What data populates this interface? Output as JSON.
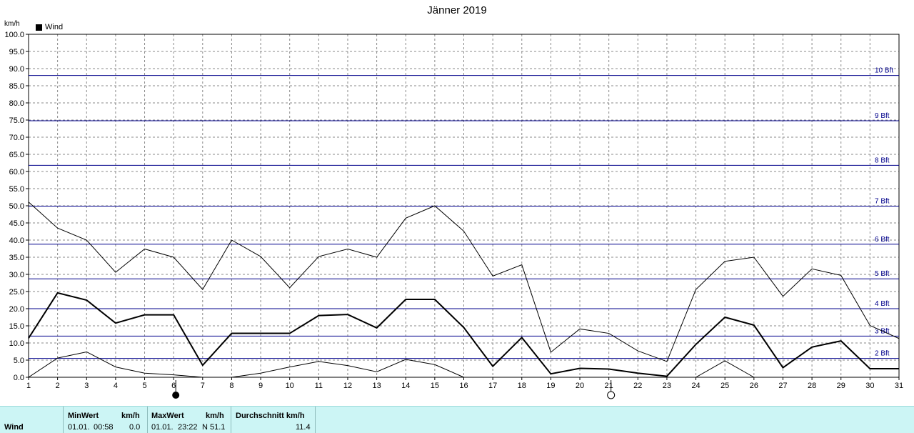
{
  "chart_data": {
    "type": "line",
    "title": "Jänner 2019",
    "ylabel": "km/h",
    "legend": [
      "Wind"
    ],
    "x": [
      1,
      2,
      3,
      4,
      5,
      6,
      7,
      8,
      9,
      10,
      11,
      12,
      13,
      14,
      15,
      16,
      17,
      18,
      19,
      20,
      21,
      22,
      23,
      24,
      25,
      26,
      27,
      28,
      29,
      30,
      31
    ],
    "xticks": [
      "1",
      "2",
      "3",
      "4",
      "5",
      "6",
      "7",
      "8",
      "9",
      "10",
      "11",
      "12",
      "13",
      "14",
      "15",
      "16",
      "17",
      "18",
      "19",
      "20",
      "21",
      "22",
      "23",
      "24",
      "25",
      "26",
      "27",
      "28",
      "29",
      "30",
      "31"
    ],
    "ylim": [
      0,
      100
    ],
    "yticks": [
      "0.0",
      "5.0",
      "10.0",
      "15.0",
      "20.0",
      "25.0",
      "30.0",
      "35.0",
      "40.0",
      "45.0",
      "50.0",
      "55.0",
      "60.0",
      "65.0",
      "70.0",
      "75.0",
      "80.0",
      "85.0",
      "90.0",
      "95.0",
      "100.0"
    ],
    "grid": true,
    "series": [
      {
        "name": "Wind",
        "role": "mean",
        "color": "#000000",
        "values": [
          11.4,
          24.6,
          22.5,
          15.8,
          18.2,
          18.2,
          3.5,
          12.8,
          12.8,
          12.8,
          18.0,
          18.3,
          14.4,
          22.7,
          22.7,
          14.5,
          3.2,
          11.6,
          1.0,
          2.6,
          2.4,
          1.2,
          0.3,
          9.6,
          17.5,
          15.2,
          2.8,
          8.8,
          10.6,
          2.5,
          2.5
        ]
      },
      {
        "role": "max",
        "color": "#000000",
        "values": [
          51.1,
          43.5,
          40.0,
          30.6,
          37.4,
          35.0,
          25.6,
          40.0,
          35.2,
          26.1,
          35.2,
          37.4,
          35.0,
          46.4,
          50.0,
          42.6,
          29.5,
          32.8,
          7.3,
          14.1,
          12.8,
          7.7,
          4.6,
          25.6,
          33.8,
          35.0,
          23.6,
          31.6,
          29.7,
          15.1,
          11.3
        ]
      },
      {
        "role": "min",
        "color": "#000000",
        "values": [
          0.0,
          5.6,
          7.4,
          3.0,
          1.2,
          0.7,
          0.0,
          0.0,
          1.2,
          3.0,
          4.6,
          3.4,
          1.6,
          5.2,
          3.7,
          0.0,
          null,
          null,
          null,
          null,
          null,
          null,
          null,
          0.0,
          4.8,
          0.0,
          null,
          null,
          null,
          null,
          null
        ]
      }
    ],
    "reference_lines": [
      {
        "label": "2 Bft",
        "value": 5.5
      },
      {
        "label": "3 Bft",
        "value": 12.0
      },
      {
        "label": "4 Bft",
        "value": 20.0
      },
      {
        "label": "5 Bft",
        "value": 28.7
      },
      {
        "label": "6 Bft",
        "value": 38.8
      },
      {
        "label": "7 Bft",
        "value": 49.9
      },
      {
        "label": "8 Bft",
        "value": 61.8
      },
      {
        "label": "9 Bft",
        "value": 74.8
      },
      {
        "label": "10 Bft",
        "value": 88.0
      }
    ],
    "reference_color": "#00008b",
    "moon_phases": [
      {
        "day": 6,
        "phase": "new-moon"
      },
      {
        "day": 21,
        "phase": "full-moon"
      }
    ]
  },
  "footer": {
    "row_label": "Wind",
    "min_header": "MinWert",
    "min_unit": "km/h",
    "min_date": "01.01.",
    "min_time": "00:58",
    "min_value": "0.0",
    "max_header": "MaxWert",
    "max_unit": "km/h",
    "max_date": "01.01.",
    "max_time": "23:22",
    "max_value": "N 51.1",
    "avg_header": "Durchschnitt km/h",
    "avg_value": "11.4"
  }
}
